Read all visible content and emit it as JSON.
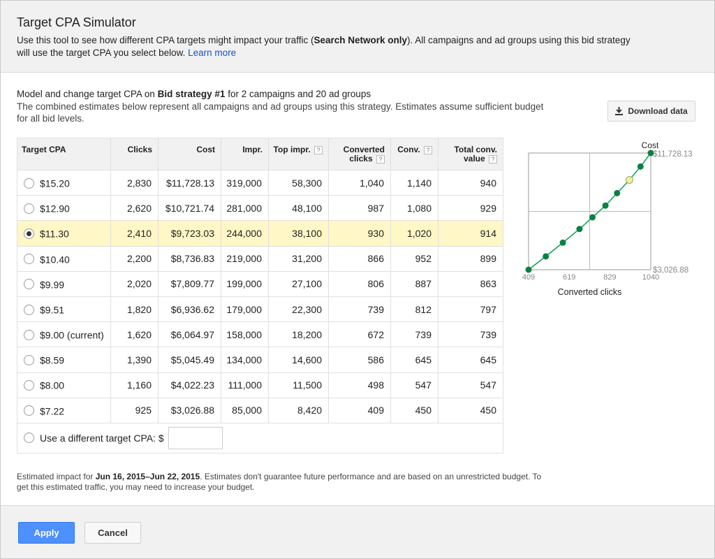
{
  "header": {
    "title": "Target CPA Simulator",
    "desc_pre": "Use this tool to see how different CPA targets might impact your traffic (",
    "desc_bold": "Search Network only",
    "desc_post": "). All campaigns and ad groups using this bid strategy will use the target CPA you select below.",
    "learn_more": "Learn more"
  },
  "model": {
    "pre": "Model and change target CPA on ",
    "bold": "Bid strategy #1",
    "post": " for 2 campaigns and 20 ad groups",
    "combined": "The combined estimates below represent all campaigns and ad groups using this strategy. Estimates assume sufficient budget for all bid levels."
  },
  "download": {
    "label": "Download data",
    "icon": "download-icon"
  },
  "table": {
    "headers": {
      "target_cpa": "Target CPA",
      "clicks": "Clicks",
      "cost": "Cost",
      "impr": "Impr.",
      "top_impr": "Top impr.",
      "converted_clicks_1": "Converted",
      "converted_clicks_2": "clicks",
      "conv": "Conv.",
      "total_conv_1": "Total conv.",
      "total_conv_2": "value",
      "help": "?"
    },
    "rows": [
      {
        "cpa": "$15.20",
        "clicks": "2,830",
        "cost": "$11,728.13",
        "impr": "319,000",
        "top": "58,300",
        "cc": "1,040",
        "conv": "1,140",
        "tcv": "940"
      },
      {
        "cpa": "$12.90",
        "clicks": "2,620",
        "cost": "$10,721.74",
        "impr": "281,000",
        "top": "48,100",
        "cc": "987",
        "conv": "1,080",
        "tcv": "929"
      },
      {
        "cpa": "$11.30",
        "clicks": "2,410",
        "cost": "$9,723.03",
        "impr": "244,000",
        "top": "38,100",
        "cc": "930",
        "conv": "1,020",
        "tcv": "914"
      },
      {
        "cpa": "$10.40",
        "clicks": "2,200",
        "cost": "$8,736.83",
        "impr": "219,000",
        "top": "31,200",
        "cc": "866",
        "conv": "952",
        "tcv": "899"
      },
      {
        "cpa": "$9.99",
        "clicks": "2,020",
        "cost": "$7,809.77",
        "impr": "199,000",
        "top": "27,100",
        "cc": "806",
        "conv": "887",
        "tcv": "863"
      },
      {
        "cpa": "$9.51",
        "clicks": "1,820",
        "cost": "$6,936.62",
        "impr": "179,000",
        "top": "22,300",
        "cc": "739",
        "conv": "812",
        "tcv": "797"
      },
      {
        "cpa": "$9.00 (current)",
        "clicks": "1,620",
        "cost": "$6,064.97",
        "impr": "158,000",
        "top": "18,200",
        "cc": "672",
        "conv": "739",
        "tcv": "739"
      },
      {
        "cpa": "$8.59",
        "clicks": "1,390",
        "cost": "$5,045.49",
        "impr": "134,000",
        "top": "14,600",
        "cc": "586",
        "conv": "645",
        "tcv": "645"
      },
      {
        "cpa": "$8.00",
        "clicks": "1,160",
        "cost": "$4,022.23",
        "impr": "111,000",
        "top": "11,500",
        "cc": "498",
        "conv": "547",
        "tcv": "547"
      },
      {
        "cpa": "$7.22",
        "clicks": "925",
        "cost": "$3,026.88",
        "impr": "85,000",
        "top": "8,420",
        "cc": "409",
        "conv": "450",
        "tcv": "450"
      }
    ],
    "selected_index": 2,
    "custom_label": "Use a different target CPA:",
    "custom_currency": "$",
    "custom_value": ""
  },
  "chart_data": {
    "type": "line",
    "title": "",
    "xlabel": "Converted clicks",
    "ylabel": "Cost",
    "x_ticks": [
      "409",
      "619",
      "829",
      "1040"
    ],
    "y_top_label": "$11,728.13",
    "y_bottom_label": "$3,026.88",
    "xlim": [
      409,
      1040
    ],
    "ylim": [
      3026.88,
      11728.13
    ],
    "highlight_x": 930,
    "series": [
      {
        "x": [
          409,
          498,
          586,
          672,
          739,
          806,
          866,
          930,
          987,
          1040
        ],
        "y": [
          3026.88,
          4022.23,
          5045.49,
          6064.97,
          6936.62,
          7809.77,
          8736.83,
          9723.03,
          10721.74,
          11728.13
        ]
      }
    ],
    "colors": {
      "line": "#0f9d58",
      "point": "#0b8043",
      "highlight": "#f0f09a"
    }
  },
  "footnote": {
    "pre": "Estimated impact for ",
    "bold": "Jun 16, 2015–Jun 22, 2015",
    "post": ". Estimates don't guarantee future performance and are based on an unrestricted budget. To get this estimated traffic, you may need to increase your budget."
  },
  "footer": {
    "apply": "Apply",
    "cancel": "Cancel"
  },
  "colors": {
    "primary": "#4d90fe",
    "selected_row": "#fff7c6",
    "link": "#1155cc"
  }
}
